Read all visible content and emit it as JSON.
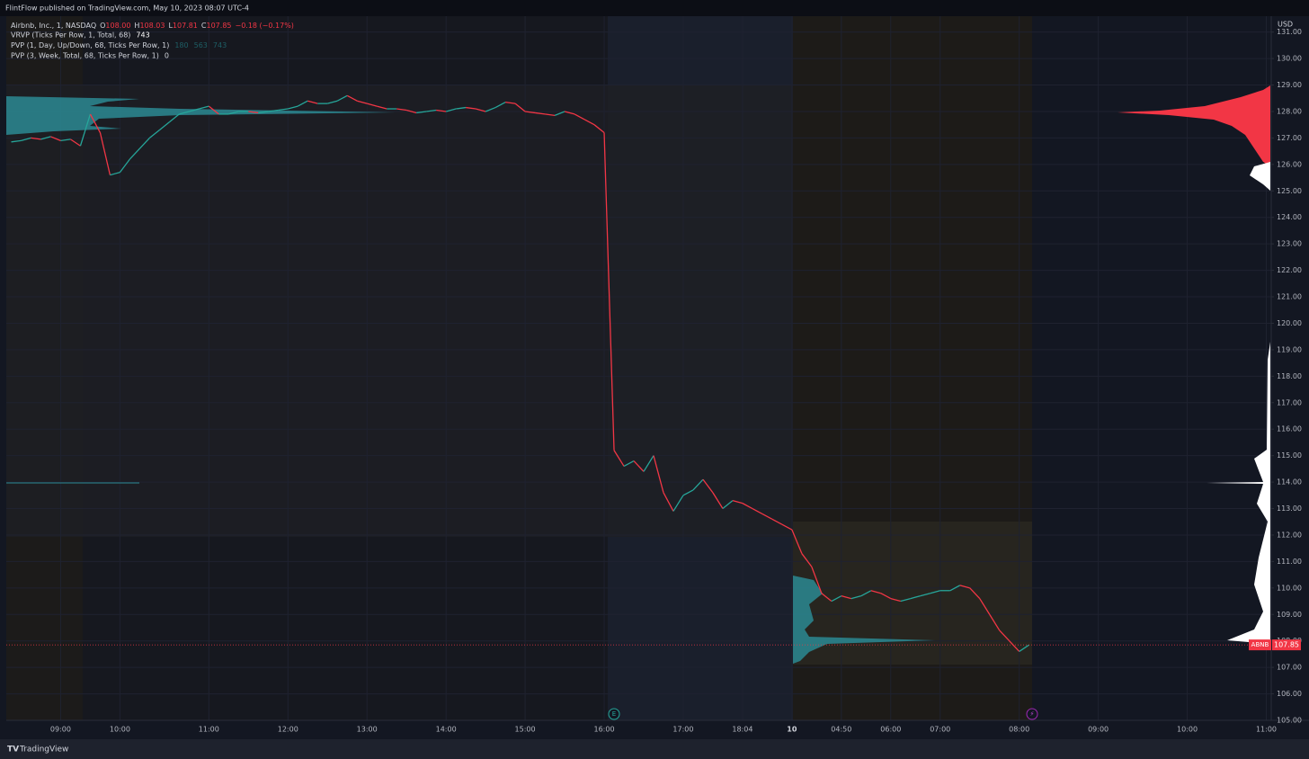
{
  "header": {
    "published": "FlintFlow published on TradingView.com, May 10, 2023 08:07 UTC-4",
    "brand": "TradingView"
  },
  "chart_data": {
    "type": "line",
    "symbol": "Airbnb, Inc., 1, NASDAQ",
    "ohlc": [
      {
        "key": "O",
        "text": "108.00"
      },
      {
        "key": "H",
        "text": "108.03"
      },
      {
        "key": "L",
        "text": "107.81"
      },
      {
        "key": "C",
        "text": "107.85"
      }
    ],
    "change": "−0.18 (−0.17%)",
    "indicators": [
      {
        "name": "VRVP (Ticks Per Row, 1, Total, 68)",
        "readings": [
          "743"
        ]
      },
      {
        "name": "PVP (1, Day, Up/Down, 68, Ticks Per Row, 1)",
        "readings": [
          "180",
          "563",
          "743"
        ]
      },
      {
        "name": "PVP (3, Week, Total, 68, Ticks Per Row, 1)",
        "readings": [
          "0"
        ]
      }
    ],
    "currency": "USD",
    "ticker": "ABNB",
    "last_price": 107.85,
    "up_color": "#26a69a",
    "down_color": "#f23645",
    "categories": [
      null,
      null,
      null,
      null,
      null,
      "09:00",
      null,
      null,
      null,
      null,
      null,
      "10:00",
      null,
      null,
      null,
      null,
      null,
      null,
      null,
      null,
      "11:00",
      null,
      null,
      null,
      null,
      null,
      null,
      null,
      "12:00",
      null,
      null,
      null,
      null,
      null,
      null,
      null,
      "13:00",
      null,
      null,
      null,
      null,
      null,
      null,
      null,
      "14:00",
      null,
      null,
      null,
      null,
      null,
      null,
      null,
      "15:00",
      null,
      null,
      null,
      null,
      null,
      null,
      null,
      "16:00",
      null,
      null,
      null,
      null,
      null,
      null,
      null,
      "17:00",
      null,
      null,
      null,
      null,
      null,
      "18:04",
      null,
      null,
      null,
      null,
      "10",
      null,
      null,
      null,
      null,
      "04:50",
      null,
      null,
      null,
      null,
      "06:00",
      null,
      null,
      null,
      null,
      "07:00",
      null,
      null,
      null,
      null,
      null,
      null,
      null,
      "08:00",
      null,
      null,
      null,
      null,
      null,
      null,
      null,
      "09:00",
      null,
      null,
      null,
      null,
      null,
      null,
      null,
      null,
      "10:00",
      null,
      null,
      null,
      null,
      null,
      null,
      null,
      "11:00"
    ],
    "values": [
      126.85,
      126.9,
      127.0,
      126.95,
      127.05,
      126.9,
      126.95,
      126.7,
      127.9,
      127.2,
      125.6,
      125.7,
      126.2,
      126.6,
      127.0,
      127.3,
      127.6,
      127.9,
      128.0,
      128.1,
      128.2,
      127.9,
      127.9,
      128.0,
      128.0,
      127.95,
      128.0,
      128.05,
      128.1,
      128.2,
      128.4,
      128.3,
      128.3,
      128.4,
      128.6,
      128.4,
      128.3,
      128.2,
      128.1,
      128.1,
      128.05,
      127.95,
      128.0,
      128.05,
      128.0,
      128.1,
      128.15,
      128.1,
      128.0,
      128.15,
      128.35,
      128.3,
      128.0,
      127.95,
      127.9,
      127.85,
      128.0,
      127.9,
      127.7,
      127.5,
      127.2,
      115.2,
      114.6,
      114.8,
      114.4,
      115.0,
      113.6,
      112.9,
      113.5,
      113.7,
      114.1,
      113.6,
      113.0,
      113.3,
      113.2,
      113.0,
      112.8,
      112.6,
      112.4,
      112.2,
      111.3,
      110.8,
      109.8,
      109.5,
      109.7,
      109.6,
      109.7,
      109.9,
      109.8,
      109.6,
      109.5,
      109.6,
      109.7,
      109.8,
      109.9,
      109.9,
      110.1,
      110.0,
      109.6,
      109.0,
      108.4,
      108.0,
      107.6,
      107.85,
      null,
      null,
      null,
      null,
      null,
      null,
      null,
      null,
      null,
      null,
      null,
      null,
      null,
      null,
      null,
      null,
      null,
      null,
      null,
      null,
      null,
      null,
      null,
      null
    ],
    "ylim": [
      105,
      131.6
    ],
    "yticks": [
      {
        "value": 105,
        "label": "105.00"
      },
      {
        "value": 106,
        "label": "106.00"
      },
      {
        "value": 107,
        "label": "107.00"
      },
      {
        "value": 108,
        "label": "108.00"
      },
      {
        "value": 109,
        "label": "109.00"
      },
      {
        "value": 110,
        "label": "110.00"
      },
      {
        "value": 111,
        "label": "111.00"
      },
      {
        "value": 112,
        "label": "112.00"
      },
      {
        "value": 113,
        "label": "113.00"
      },
      {
        "value": 114,
        "label": "114.00"
      },
      {
        "value": 115,
        "label": "115.00"
      },
      {
        "value": 116,
        "label": "116.00"
      },
      {
        "value": 117,
        "label": "117.00"
      },
      {
        "value": 118,
        "label": "118.00"
      },
      {
        "value": 119,
        "label": "119.00"
      },
      {
        "value": 120,
        "label": "120.00"
      },
      {
        "value": 121,
        "label": "121.00"
      },
      {
        "value": 122,
        "label": "122.00"
      },
      {
        "value": 123,
        "label": "123.00"
      },
      {
        "value": 124,
        "label": "124.00"
      },
      {
        "value": 125,
        "label": "125.00"
      },
      {
        "value": 126,
        "label": "126.00"
      },
      {
        "value": 127,
        "label": "127.00"
      },
      {
        "value": 128,
        "label": "128.00"
      },
      {
        "value": 129,
        "label": "129.00"
      },
      {
        "value": 130,
        "label": "130.00"
      },
      {
        "value": 131,
        "label": "131.00"
      }
    ],
    "grid": true
  }
}
